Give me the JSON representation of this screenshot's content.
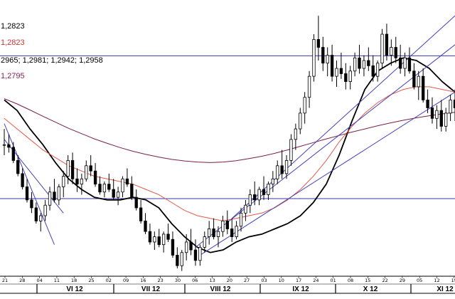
{
  "chart_data": {
    "type": "candlestick",
    "legend": [
      {
        "text": "1,2823",
        "color": "#000000"
      },
      {
        "text": "1,2823",
        "color": "#cc3333"
      },
      {
        "text": "2965; 1,2981; 1,2942; 1,2958",
        "color": "#000000"
      },
      {
        "text": "1,2795",
        "color": "#8b2252"
      }
    ],
    "x_ticks": [
      "21",
      "28",
      "04",
      "11",
      "18",
      "25",
      "02",
      "09",
      "16",
      "23",
      "30",
      "06",
      "13",
      "20",
      "27",
      "03",
      "10",
      "17",
      "24",
      "01",
      "08",
      "15",
      "22",
      "29",
      "05",
      "12",
      "19"
    ],
    "months": [
      "VI 12",
      "VII 12",
      "VIII 12",
      "IX 12",
      "X 12",
      "XI 12"
    ],
    "candles": [
      [
        1.262,
        1.268,
        1.258,
        1.262
      ],
      [
        1.262,
        1.266,
        1.259,
        1.261
      ],
      [
        1.261,
        1.263,
        1.255,
        1.256
      ],
      [
        1.256,
        1.258,
        1.25,
        1.251
      ],
      [
        1.251,
        1.253,
        1.245,
        1.246
      ],
      [
        1.246,
        1.249,
        1.24,
        1.241
      ],
      [
        1.241,
        1.244,
        1.236,
        1.238
      ],
      [
        1.238,
        1.24,
        1.232,
        1.233
      ],
      [
        1.233,
        1.236,
        1.229,
        1.235
      ],
      [
        1.235,
        1.241,
        1.233,
        1.239
      ],
      [
        1.239,
        1.246,
        1.237,
        1.244
      ],
      [
        1.244,
        1.249,
        1.24,
        1.241
      ],
      [
        1.241,
        1.247,
        1.239,
        1.246
      ],
      [
        1.246,
        1.252,
        1.242,
        1.25
      ],
      [
        1.25,
        1.258,
        1.247,
        1.256
      ],
      [
        1.256,
        1.259,
        1.247,
        1.249
      ],
      [
        1.249,
        1.253,
        1.244,
        1.247
      ],
      [
        1.247,
        1.251,
        1.243,
        1.249
      ],
      [
        1.249,
        1.256,
        1.248,
        1.254
      ],
      [
        1.254,
        1.258,
        1.25,
        1.252
      ],
      [
        1.252,
        1.255,
        1.246,
        1.247
      ],
      [
        1.247,
        1.25,
        1.243,
        1.244
      ],
      [
        1.244,
        1.248,
        1.242,
        1.247
      ],
      [
        1.247,
        1.251,
        1.244,
        1.245
      ],
      [
        1.245,
        1.249,
        1.241,
        1.242
      ],
      [
        1.242,
        1.246,
        1.239,
        1.244
      ],
      [
        1.244,
        1.25,
        1.242,
        1.249
      ],
      [
        1.249,
        1.253,
        1.246,
        1.247
      ],
      [
        1.247,
        1.25,
        1.241,
        1.242
      ],
      [
        1.242,
        1.245,
        1.237,
        1.238
      ],
      [
        1.238,
        1.241,
        1.232,
        1.233
      ],
      [
        1.233,
        1.236,
        1.228,
        1.229
      ],
      [
        1.229,
        1.232,
        1.224,
        1.225
      ],
      [
        1.225,
        1.229,
        1.222,
        1.227
      ],
      [
        1.227,
        1.23,
        1.223,
        1.224
      ],
      [
        1.224,
        1.229,
        1.221,
        1.228
      ],
      [
        1.228,
        1.232,
        1.225,
        1.226
      ],
      [
        1.226,
        1.229,
        1.219,
        1.22
      ],
      [
        1.22,
        1.223,
        1.215,
        1.216
      ],
      [
        1.216,
        1.222,
        1.214,
        1.221
      ],
      [
        1.221,
        1.228,
        1.218,
        1.225
      ],
      [
        1.225,
        1.23,
        1.22,
        1.222
      ],
      [
        1.222,
        1.226,
        1.216,
        1.218
      ],
      [
        1.218,
        1.224,
        1.216,
        1.223
      ],
      [
        1.223,
        1.229,
        1.221,
        1.227
      ],
      [
        1.227,
        1.233,
        1.224,
        1.23
      ],
      [
        1.23,
        1.234,
        1.226,
        1.227
      ],
      [
        1.227,
        1.231,
        1.223,
        1.229
      ],
      [
        1.229,
        1.235,
        1.227,
        1.233
      ],
      [
        1.233,
        1.237,
        1.228,
        1.23
      ],
      [
        1.23,
        1.234,
        1.225,
        1.227
      ],
      [
        1.227,
        1.233,
        1.226,
        1.231
      ],
      [
        1.231,
        1.238,
        1.229,
        1.236
      ],
      [
        1.236,
        1.241,
        1.233,
        1.239
      ],
      [
        1.239,
        1.245,
        1.236,
        1.243
      ],
      [
        1.243,
        1.248,
        1.239,
        1.241
      ],
      [
        1.241,
        1.246,
        1.239,
        1.245
      ],
      [
        1.245,
        1.25,
        1.241,
        1.243
      ],
      [
        1.243,
        1.248,
        1.241,
        1.247
      ],
      [
        1.247,
        1.252,
        1.244,
        1.249
      ],
      [
        1.249,
        1.256,
        1.247,
        1.254
      ],
      [
        1.254,
        1.26,
        1.249,
        1.251
      ],
      [
        1.251,
        1.258,
        1.249,
        1.256
      ],
      [
        1.256,
        1.266,
        1.254,
        1.264
      ],
      [
        1.264,
        1.27,
        1.26,
        1.268
      ],
      [
        1.268,
        1.276,
        1.266,
        1.274
      ],
      [
        1.274,
        1.282,
        1.27,
        1.28
      ],
      [
        1.28,
        1.29,
        1.276,
        1.288
      ],
      [
        1.288,
        1.304,
        1.286,
        1.302
      ],
      [
        1.302,
        1.311,
        1.294,
        1.299
      ],
      [
        1.299,
        1.303,
        1.29,
        1.293
      ],
      [
        1.293,
        1.299,
        1.288,
        1.296
      ],
      [
        1.296,
        1.3,
        1.286,
        1.288
      ],
      [
        1.288,
        1.294,
        1.284,
        1.291
      ],
      [
        1.291,
        1.297,
        1.287,
        1.289
      ],
      [
        1.289,
        1.293,
        1.283,
        1.286
      ],
      [
        1.286,
        1.292,
        1.283,
        1.29
      ],
      [
        1.29,
        1.297,
        1.288,
        1.295
      ],
      [
        1.295,
        1.3,
        1.289,
        1.291
      ],
      [
        1.291,
        1.296,
        1.288,
        1.294
      ],
      [
        1.294,
        1.299,
        1.29,
        1.292
      ],
      [
        1.292,
        1.296,
        1.286,
        1.288
      ],
      [
        1.288,
        1.294,
        1.286,
        1.293
      ],
      [
        1.293,
        1.306,
        1.291,
        1.304
      ],
      [
        1.304,
        1.308,
        1.294,
        1.296
      ],
      [
        1.296,
        1.302,
        1.292,
        1.299
      ],
      [
        1.299,
        1.303,
        1.293,
        1.295
      ],
      [
        1.295,
        1.3,
        1.289,
        1.291
      ],
      [
        1.291,
        1.297,
        1.288,
        1.295
      ],
      [
        1.295,
        1.299,
        1.289,
        1.29
      ],
      [
        1.29,
        1.293,
        1.283,
        1.284
      ],
      [
        1.284,
        1.29,
        1.279,
        1.288
      ],
      [
        1.288,
        1.291,
        1.278,
        1.279
      ],
      [
        1.279,
        1.283,
        1.274,
        1.276
      ],
      [
        1.276,
        1.28,
        1.27,
        1.272
      ],
      [
        1.272,
        1.277,
        1.268,
        1.275
      ],
      [
        1.275,
        1.279,
        1.267,
        1.269
      ],
      [
        1.269,
        1.276,
        1.267,
        1.274
      ],
      [
        1.274,
        1.281,
        1.271,
        1.279
      ],
      [
        1.279,
        1.283,
        1.271,
        1.276
      ]
    ],
    "moving_averages": [
      {
        "color": "#000000",
        "values": [
          1.279,
          1.275,
          1.268,
          1.262,
          1.255,
          1.249,
          1.245,
          1.242,
          1.241,
          1.241,
          1.242,
          1.241,
          1.238,
          1.232,
          1.227,
          1.223,
          1.221,
          1.222,
          1.225,
          1.227,
          1.228,
          1.23,
          1.232,
          1.235,
          1.24,
          1.247,
          1.258,
          1.271,
          1.283,
          1.29,
          1.293,
          1.295,
          1.294,
          1.291,
          1.286,
          1.282
        ]
      },
      {
        "color": "#e05a4a",
        "values": [
          1.272,
          1.268,
          1.264,
          1.26,
          1.257,
          1.254,
          1.252,
          1.25,
          1.249,
          1.248,
          1.247,
          1.245,
          1.243,
          1.24,
          1.237,
          1.235,
          1.234,
          1.233,
          1.234,
          1.235,
          1.236,
          1.238,
          1.241,
          1.245,
          1.25,
          1.256,
          1.263,
          1.269,
          1.274,
          1.278,
          1.281,
          1.283,
          1.284,
          1.284,
          1.283,
          1.282
        ]
      },
      {
        "color": "#7a1f4a",
        "values": [
          1.2795,
          1.2775,
          1.2752,
          1.2728,
          1.2705,
          1.2682,
          1.2662,
          1.2642,
          1.2625,
          1.2609,
          1.2595,
          1.2583,
          1.2573,
          1.2564,
          1.2558,
          1.2554,
          1.2552,
          1.2554,
          1.2559,
          1.2567,
          1.2576,
          1.2587,
          1.26,
          1.2614,
          1.2628,
          1.2642,
          1.2655,
          1.2668,
          1.268,
          1.2692,
          1.2703,
          1.2713,
          1.2722,
          1.273,
          1.2737,
          1.2743
        ]
      }
    ],
    "horizontal_lines": [
      1.2958,
      1.2415
    ],
    "trendlines": [
      {
        "color": "#4444bb",
        "points": [
          [
            0,
            1.27
          ],
          [
            11,
            1.224
          ]
        ]
      },
      {
        "color": "#4444bb",
        "points": [
          [
            0,
            1.264
          ],
          [
            13,
            1.236
          ]
        ]
      },
      {
        "color": "#4444bb",
        "points": [
          [
            43,
            1.22
          ],
          [
            99,
            1.282
          ]
        ]
      },
      {
        "color": "#4444bb",
        "points": [
          [
            50,
            1.234
          ],
          [
            99,
            1.311
          ]
        ]
      },
      {
        "color": "#4444bb",
        "points": [
          [
            42,
            1.223
          ],
          [
            99,
            1.3
          ]
        ]
      }
    ],
    "ylim": [
      1.212,
      1.317
    ]
  }
}
